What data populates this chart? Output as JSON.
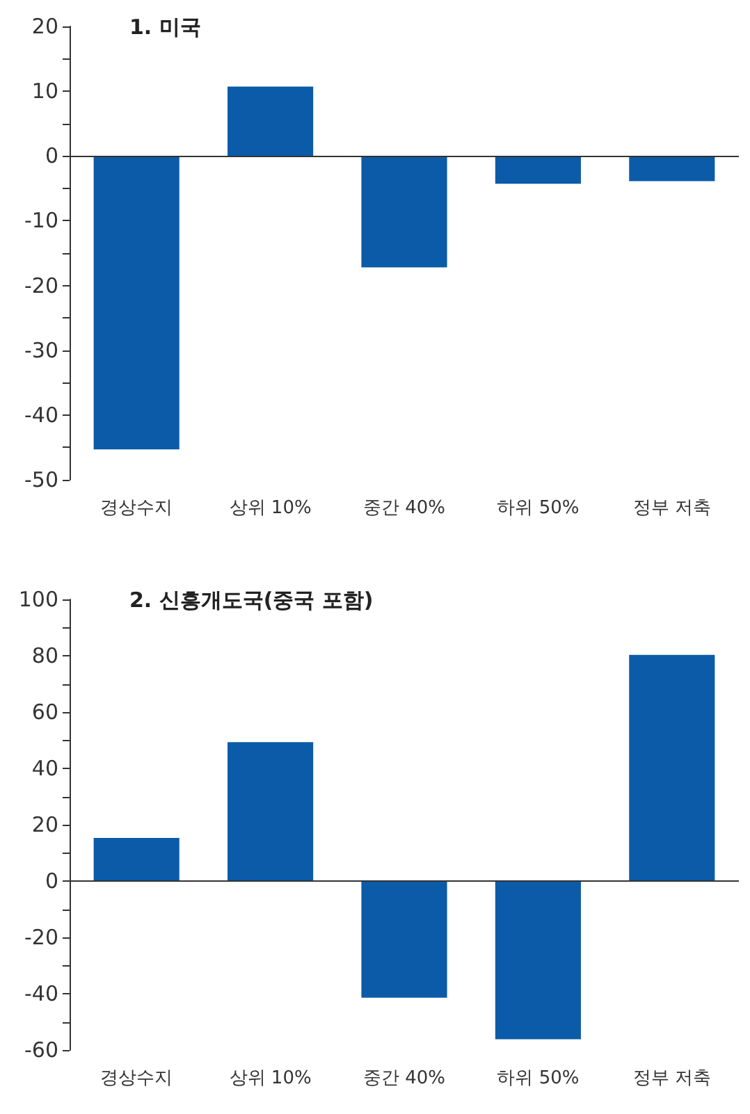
{
  "chart_data": [
    {
      "type": "bar",
      "title": "1. 미국",
      "categories": [
        "경상수지",
        "상위 10%",
        "중간 40%",
        "하위 50%",
        "정부 저축"
      ],
      "values": [
        -45.3,
        10.7,
        -17.2,
        -4.3,
        -3.9
      ],
      "color": "#0b5ba8",
      "ylim": [
        -50,
        20
      ],
      "yticks": [
        -50,
        {
          "value": -45,
          "label": null
        },
        -40,
        {
          "value": -35,
          "label": null
        },
        -30,
        {
          "value": -25,
          "label": null
        },
        -20,
        {
          "value": -15,
          "label": null
        },
        -10,
        {
          "value": -5,
          "label": null
        },
        0,
        {
          "value": 5,
          "label": null
        },
        10,
        {
          "value": 15,
          "label": null
        },
        20
      ],
      "grid": false,
      "ref_lines": [
        {
          "axis": "y",
          "value": 0,
          "color": "#333333"
        }
      ]
    },
    {
      "type": "bar",
      "title": "2. 신흥개도국(중국 포함)",
      "categories": [
        "경상수지",
        "상위 10%",
        "중간 40%",
        "하위 50%",
        "정부 저축"
      ],
      "values": [
        15.3,
        49.3,
        -41.4,
        -56.2,
        80.3
      ],
      "color": "#0b5ba8",
      "ylim": [
        -60,
        100
      ],
      "yticks": [
        -60,
        {
          "value": -50,
          "label": null
        },
        -40,
        {
          "value": -30,
          "label": null
        },
        -20,
        {
          "value": -10,
          "label": null
        },
        0,
        {
          "value": 10,
          "label": null
        },
        20,
        {
          "value": 30,
          "label": null
        },
        40,
        {
          "value": 50,
          "label": null
        },
        60,
        {
          "value": 70,
          "label": null
        },
        80,
        {
          "value": 90,
          "label": null
        },
        100
      ],
      "grid": false,
      "ref_lines": [
        {
          "axis": "y",
          "value": 0,
          "color": "#333333"
        }
      ]
    }
  ]
}
